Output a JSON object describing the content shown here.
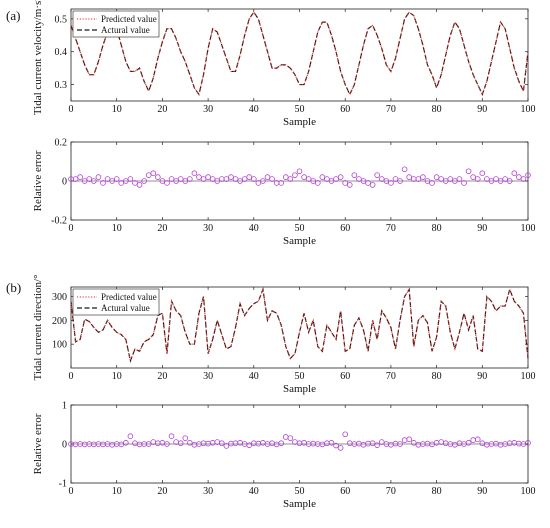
{
  "panel_labels": [
    "(a)",
    "(b)"
  ],
  "colors": {
    "predicted": "#e8302a",
    "actual": "#1a1a1a",
    "error_marker": "#b23bd6",
    "axis": "#222222"
  },
  "chart_data": [
    {
      "type": "line",
      "panel": "(a)",
      "xlabel": "Sample",
      "ylabel": "Tidal current velocity/m·s",
      "ylabel_sup": "-1",
      "xlim": [
        0,
        100
      ],
      "ylim": [
        0.25,
        0.53
      ],
      "xticks": [
        0,
        10,
        20,
        30,
        40,
        50,
        60,
        70,
        80,
        90,
        100
      ],
      "yticks": [
        0.3,
        0.4,
        0.5
      ],
      "ytick_labels": [
        "0.3",
        "0.4",
        "0.5"
      ],
      "legend": "top-left",
      "series": [
        {
          "name": "Predicted value",
          "style": "dotted-red",
          "values": [
            0.48,
            0.44,
            0.4,
            0.36,
            0.33,
            0.33,
            0.37,
            0.42,
            0.46,
            0.49,
            0.47,
            0.42,
            0.37,
            0.34,
            0.34,
            0.35,
            0.31,
            0.28,
            0.32,
            0.38,
            0.43,
            0.47,
            0.47,
            0.44,
            0.4,
            0.37,
            0.33,
            0.29,
            0.27,
            0.33,
            0.41,
            0.47,
            0.46,
            0.42,
            0.38,
            0.34,
            0.34,
            0.39,
            0.45,
            0.5,
            0.52,
            0.5,
            0.45,
            0.4,
            0.35,
            0.35,
            0.36,
            0.36,
            0.35,
            0.33,
            0.3,
            0.3,
            0.34,
            0.4,
            0.46,
            0.49,
            0.49,
            0.45,
            0.4,
            0.34,
            0.3,
            0.27,
            0.3,
            0.36,
            0.42,
            0.47,
            0.48,
            0.45,
            0.41,
            0.36,
            0.34,
            0.38,
            0.44,
            0.5,
            0.52,
            0.51,
            0.47,
            0.42,
            0.36,
            0.33,
            0.29,
            0.33,
            0.39,
            0.45,
            0.49,
            0.47,
            0.42,
            0.37,
            0.33,
            0.3,
            0.27,
            0.31,
            0.37,
            0.43,
            0.49,
            0.47,
            0.41,
            0.35,
            0.31,
            0.28,
            0.4
          ]
        },
        {
          "name": "Actural value",
          "style": "dashed-black",
          "values": [
            0.48,
            0.44,
            0.4,
            0.36,
            0.33,
            0.33,
            0.37,
            0.42,
            0.46,
            0.49,
            0.47,
            0.42,
            0.37,
            0.34,
            0.34,
            0.35,
            0.31,
            0.28,
            0.32,
            0.38,
            0.43,
            0.47,
            0.47,
            0.44,
            0.4,
            0.37,
            0.33,
            0.29,
            0.27,
            0.33,
            0.41,
            0.47,
            0.46,
            0.42,
            0.38,
            0.34,
            0.34,
            0.39,
            0.45,
            0.5,
            0.52,
            0.5,
            0.45,
            0.4,
            0.35,
            0.35,
            0.36,
            0.36,
            0.35,
            0.33,
            0.3,
            0.3,
            0.34,
            0.4,
            0.46,
            0.49,
            0.49,
            0.45,
            0.4,
            0.34,
            0.3,
            0.27,
            0.3,
            0.36,
            0.42,
            0.47,
            0.48,
            0.45,
            0.41,
            0.36,
            0.34,
            0.38,
            0.44,
            0.5,
            0.52,
            0.51,
            0.47,
            0.42,
            0.36,
            0.33,
            0.29,
            0.33,
            0.39,
            0.45,
            0.49,
            0.47,
            0.42,
            0.37,
            0.33,
            0.3,
            0.27,
            0.31,
            0.37,
            0.43,
            0.49,
            0.47,
            0.41,
            0.35,
            0.31,
            0.28,
            0.4
          ]
        }
      ]
    },
    {
      "type": "scatter",
      "panel": "(a)",
      "xlabel": "Sample",
      "ylabel": "Relative error",
      "xlim": [
        0,
        100
      ],
      "ylim": [
        -0.2,
        0.2
      ],
      "xticks": [
        0,
        10,
        20,
        30,
        40,
        50,
        60,
        70,
        80,
        90,
        100
      ],
      "yticks": [
        -0.2,
        0,
        0.2
      ],
      "ytick_labels": [
        "-0.2",
        "0",
        "0.2"
      ],
      "values": [
        0.01,
        0.01,
        0.02,
        0.0,
        0.01,
        0.0,
        0.02,
        -0.01,
        0.01,
        0.0,
        0.01,
        -0.01,
        0.0,
        0.01,
        -0.01,
        -0.02,
        0.0,
        0.03,
        0.04,
        0.02,
        0.0,
        -0.01,
        0.01,
        0.0,
        0.01,
        0.0,
        0.01,
        0.04,
        0.02,
        0.01,
        0.02,
        0.01,
        0.0,
        0.01,
        0.01,
        0.02,
        0.01,
        0.0,
        0.01,
        0.02,
        0.01,
        -0.01,
        0.0,
        0.02,
        0.01,
        -0.01,
        -0.01,
        0.02,
        0.01,
        0.03,
        0.05,
        0.02,
        0.01,
        0.0,
        -0.01,
        0.02,
        0.01,
        0.0,
        0.01,
        0.02,
        -0.01,
        -0.02,
        0.03,
        0.01,
        0.0,
        -0.01,
        -0.02,
        0.03,
        0.01,
        0.0,
        -0.01,
        0.01,
        0.0,
        0.06,
        0.02,
        0.01,
        0.01,
        0.02,
        0.0,
        -0.01,
        0.02,
        0.01,
        0.0,
        0.01,
        0.0,
        0.01,
        -0.01,
        0.05,
        0.02,
        0.01,
        0.04,
        0.01,
        0.0,
        0.01,
        0.0,
        0.01,
        0.0,
        0.04,
        0.02,
        0.01,
        0.03
      ]
    },
    {
      "type": "line",
      "panel": "(b)",
      "xlabel": "Sample",
      "ylabel": "Tidal current direction/°",
      "xlim": [
        0,
        100
      ],
      "ylim": [
        0,
        340
      ],
      "xticks": [
        0,
        10,
        20,
        30,
        40,
        50,
        60,
        70,
        80,
        90,
        100
      ],
      "yticks": [
        100,
        200,
        300
      ],
      "ytick_labels": [
        "100",
        "200",
        "300"
      ],
      "legend": "top-left",
      "series": [
        {
          "name": "Predicted value",
          "style": "dotted-red",
          "values": [
            280,
            110,
            120,
            205,
            195,
            170,
            150,
            160,
            200,
            170,
            150,
            140,
            120,
            30,
            80,
            70,
            110,
            120,
            140,
            220,
            230,
            60,
            280,
            240,
            220,
            150,
            100,
            100,
            230,
            300,
            60,
            120,
            200,
            140,
            80,
            90,
            170,
            270,
            220,
            250,
            270,
            280,
            330,
            200,
            240,
            230,
            180,
            90,
            40,
            60,
            150,
            230,
            150,
            200,
            90,
            70,
            180,
            150,
            120,
            240,
            70,
            80,
            180,
            210,
            160,
            70,
            200,
            120,
            240,
            210,
            170,
            80,
            200,
            300,
            330,
            90,
            200,
            220,
            190,
            70,
            130,
            280,
            260,
            150,
            80,
            150,
            230,
            160,
            220,
            80,
            70,
            300,
            280,
            240,
            260,
            260,
            330,
            280,
            260,
            230,
            40
          ]
        },
        {
          "name": "Actural value",
          "style": "dashed-black",
          "values": [
            280,
            110,
            120,
            205,
            195,
            170,
            150,
            160,
            200,
            170,
            150,
            140,
            120,
            30,
            80,
            70,
            110,
            120,
            140,
            220,
            230,
            60,
            280,
            240,
            220,
            150,
            100,
            100,
            230,
            300,
            60,
            120,
            200,
            140,
            80,
            90,
            170,
            270,
            220,
            250,
            270,
            280,
            330,
            200,
            240,
            230,
            180,
            90,
            40,
            60,
            150,
            230,
            150,
            200,
            90,
            70,
            180,
            150,
            120,
            240,
            70,
            80,
            180,
            210,
            160,
            70,
            200,
            120,
            240,
            210,
            170,
            80,
            200,
            300,
            330,
            90,
            200,
            220,
            190,
            70,
            130,
            280,
            260,
            150,
            80,
            150,
            230,
            160,
            220,
            80,
            70,
            300,
            280,
            240,
            260,
            260,
            330,
            280,
            260,
            230,
            40
          ]
        }
      ]
    },
    {
      "type": "scatter",
      "panel": "(b)",
      "xlabel": "Sample",
      "ylabel": "Relative error",
      "xlim": [
        0,
        100
      ],
      "ylim": [
        -1,
        1
      ],
      "xticks": [
        0,
        10,
        20,
        30,
        40,
        50,
        60,
        70,
        80,
        90,
        100
      ],
      "yticks": [
        -1,
        0,
        1
      ],
      "ytick_labels": [
        "-1",
        "0",
        "1"
      ],
      "values": [
        0.0,
        -0.01,
        0.0,
        -0.01,
        0.0,
        -0.01,
        0.0,
        -0.01,
        0.0,
        -0.02,
        0.0,
        -0.01,
        0.03,
        0.2,
        0.02,
        -0.01,
        0.0,
        0.0,
        0.05,
        0.02,
        0.03,
        0.0,
        0.2,
        0.05,
        0.02,
        0.15,
        0.03,
        -0.02,
        0.0,
        0.02,
        0.01,
        0.03,
        0.05,
        0.02,
        -0.05,
        0.01,
        0.02,
        0.03,
        0.0,
        -0.03,
        0.02,
        0.01,
        0.03,
        0.0,
        0.02,
        -0.01,
        0.02,
        0.18,
        0.15,
        0.05,
        0.02,
        0.03,
        0.0,
        0.01,
        0.0,
        -0.01,
        0.02,
        0.03,
        -0.04,
        -0.1,
        0.25,
        0.02,
        0.0,
        0.01,
        -0.02,
        0.01,
        0.02,
        -0.03,
        0.05,
        0.0,
        -0.02,
        0.01,
        0.0,
        0.1,
        0.12,
        0.03,
        -0.02,
        0.0,
        0.01,
        -0.01,
        0.03,
        0.05,
        0.02,
        0.0,
        -0.02,
        0.02,
        0.0,
        0.03,
        0.1,
        0.12,
        0.02,
        -0.02,
        0.0,
        0.01,
        -0.02,
        0.0,
        0.02,
        0.03,
        0.01,
        0.0,
        0.03
      ]
    }
  ]
}
